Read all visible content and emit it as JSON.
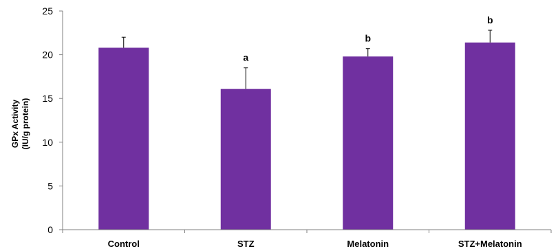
{
  "chart_data": {
    "type": "bar",
    "categories": [
      "Control",
      "STZ",
      "Melatonin",
      "STZ+Melatonin"
    ],
    "values": [
      20.8,
      16.1,
      19.8,
      21.4
    ],
    "error_upper": [
      1.2,
      2.4,
      0.9,
      1.4
    ],
    "annotations": [
      "",
      "a",
      "b",
      "b"
    ],
    "ylabel_lines": [
      "GPx Activity",
      "(IU/g protein)"
    ],
    "ylim": [
      0,
      25
    ],
    "yticks": [
      0,
      5,
      10,
      15,
      20,
      25
    ],
    "grid": false,
    "legend": "none",
    "bar_color": "#7030A0"
  }
}
